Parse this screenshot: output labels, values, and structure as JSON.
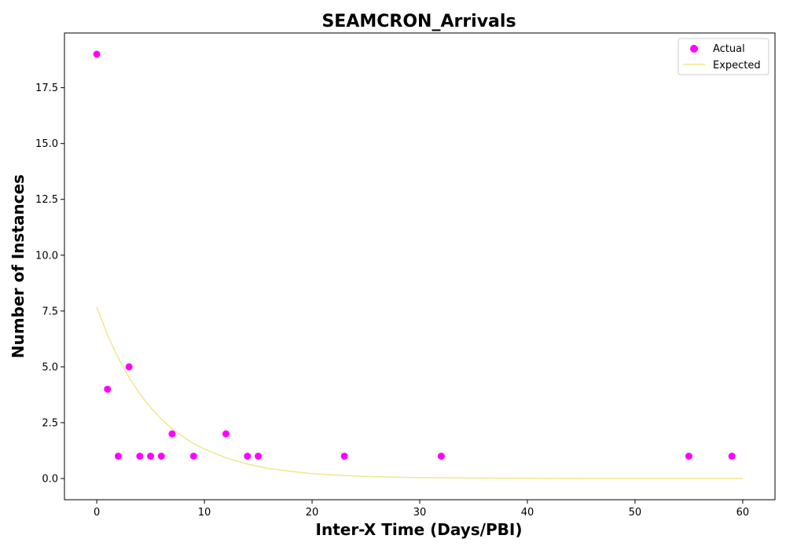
{
  "chart_data": {
    "type": "scatter",
    "title": "SEAMCRON_Arrivals",
    "xlabel": "Inter-X Time (Days/PBI)",
    "ylabel": "Number of Instances",
    "xlim": [
      -3,
      63
    ],
    "ylim": [
      -0.95,
      19.95
    ],
    "xticks": [
      0,
      10,
      20,
      30,
      40,
      50,
      60
    ],
    "xtick_labels": [
      "0",
      "10",
      "20",
      "30",
      "40",
      "50",
      "60"
    ],
    "yticks": [
      0,
      2.5,
      5,
      7.5,
      10,
      12.5,
      15,
      17.5
    ],
    "ytick_labels": [
      "0.0",
      "2.5",
      "5.0",
      "7.5",
      "10.0",
      "12.5",
      "15.0",
      "17.5"
    ],
    "grid": false,
    "legend_position": "top-right",
    "series": [
      {
        "name": "Actual",
        "kind": "scatter",
        "color": "#ff00ff",
        "x": [
          0,
          1,
          2,
          3,
          4,
          5,
          6,
          7,
          9,
          12,
          14,
          15,
          23,
          32,
          55,
          59
        ],
        "y": [
          19,
          4,
          1,
          5,
          1,
          1,
          1,
          2,
          1,
          2,
          1,
          1,
          1,
          1,
          1,
          1
        ]
      },
      {
        "name": "Expected",
        "kind": "line",
        "color": "#f0e68c",
        "x": [
          0,
          1,
          2,
          3,
          4,
          5,
          6,
          7,
          8,
          9,
          10,
          12,
          14,
          16,
          18,
          20,
          23,
          26,
          30,
          35,
          40,
          45,
          50,
          55,
          60
        ],
        "y": [
          7.67,
          6.43,
          5.39,
          4.52,
          3.79,
          3.18,
          2.66,
          2.23,
          1.87,
          1.57,
          1.32,
          0.92,
          0.65,
          0.45,
          0.32,
          0.22,
          0.13,
          0.08,
          0.04,
          0.02,
          0.01,
          0.0,
          0.0,
          0.0,
          0.0
        ]
      }
    ]
  }
}
